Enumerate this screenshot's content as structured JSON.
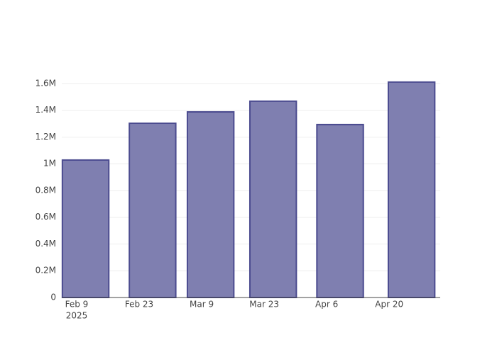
{
  "chart_data": {
    "type": "bar",
    "x": [
      "2025-02-11",
      "2025-02-26",
      "2025-03-11",
      "2025-03-25",
      "2025-04-09",
      "2025-04-25"
    ],
    "values": [
      1028000,
      1303000,
      1388000,
      1468000,
      1293000,
      1611000
    ],
    "color": "#7f7fb0",
    "edge_color": "#4b4b8f",
    "xlim": [
      "2025-02-05T16:00",
      "2025-05-01T10:00"
    ],
    "xticks": [
      {
        "value": "2025-02-09",
        "label": "Feb 9",
        "sublabel": "2025"
      },
      {
        "value": "2025-02-23",
        "label": "Feb 23"
      },
      {
        "value": "2025-03-09",
        "label": "Mar 9"
      },
      {
        "value": "2025-03-23",
        "label": "Mar 23"
      },
      {
        "value": "2025-04-06",
        "label": "Apr 6"
      },
      {
        "value": "2025-04-20",
        "label": "Apr 20"
      }
    ],
    "ylim": [
      0,
      1695000
    ],
    "yticks": [
      0,
      {
        "value": 200000,
        "label": "0.2M"
      },
      {
        "value": 400000,
        "label": "0.4M"
      },
      {
        "value": 600000,
        "label": "0.6M"
      },
      {
        "value": 800000,
        "label": "0.8M"
      },
      {
        "value": 1000000,
        "label": "1M"
      },
      {
        "value": 1200000,
        "label": "1.2M"
      },
      {
        "value": 1400000,
        "label": "1.4M"
      },
      {
        "value": 1600000,
        "label": "1.6M"
      }
    ],
    "grid": true
  }
}
